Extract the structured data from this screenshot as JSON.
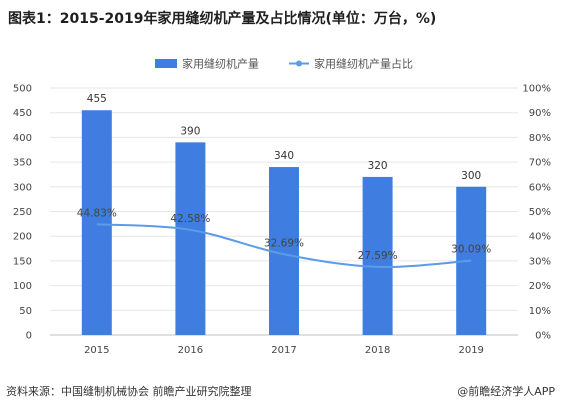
{
  "title": "图表1：2015-2019年家用缝纫机产量及占比情况(单位：万台，%)",
  "source": "资料来源：中国缝制机械协会  前瞻产业研究院整理",
  "brand": "@前瞻经济学人APP",
  "colors": {
    "bar": "#3f7ee0",
    "line": "#5b9be8"
  },
  "chart_data": {
    "type": "bar",
    "categories": [
      "2015",
      "2016",
      "2017",
      "2018",
      "2019"
    ],
    "series": [
      {
        "name": "家用缝纫机产量",
        "type": "bar",
        "axis": "left",
        "values": [
          455,
          390,
          340,
          320,
          300
        ],
        "labels": [
          "455",
          "390",
          "340",
          "320",
          "300"
        ]
      },
      {
        "name": "家用缝纫机产量占比",
        "type": "line",
        "axis": "right",
        "values": [
          44.83,
          42.58,
          32.69,
          27.59,
          30.09
        ],
        "labels": [
          "44.83%",
          "42.58%",
          "32.69%",
          "27.59%",
          "30.09%"
        ]
      }
    ],
    "yleft": {
      "min": 0,
      "max": 500,
      "ticks": [
        "0",
        "50",
        "100",
        "150",
        "200",
        "250",
        "300",
        "350",
        "400",
        "450",
        "500"
      ]
    },
    "yright": {
      "min": 0,
      "max": 100,
      "ticks": [
        "0%",
        "10%",
        "20%",
        "30%",
        "40%",
        "50%",
        "60%",
        "70%",
        "80%",
        "90%",
        "100%"
      ]
    },
    "legend_position": "top"
  }
}
